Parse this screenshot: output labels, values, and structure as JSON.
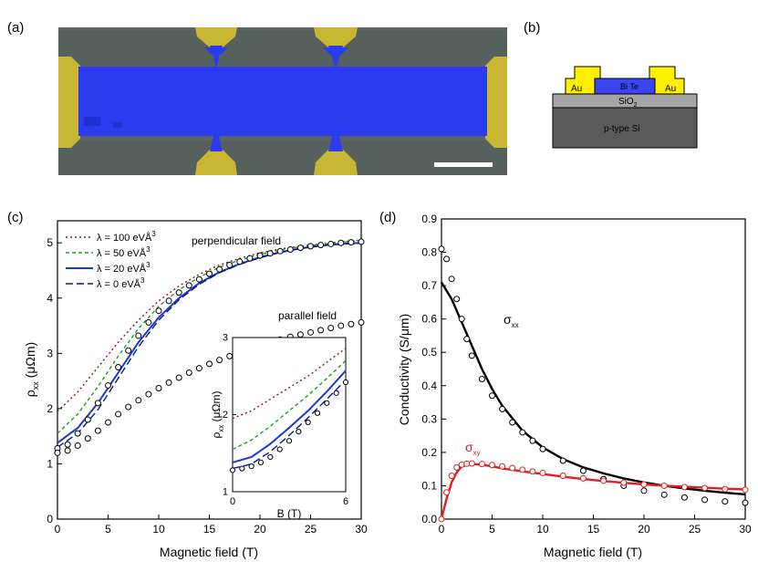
{
  "panels": {
    "a": "(a)",
    "b": "(b)",
    "c": "(c)",
    "d": "(d)"
  },
  "device": {
    "layers": {
      "au_left": "Au",
      "au_right": "Au",
      "film": "Bi Te",
      "oxide": "SiO",
      "oxide_sub": "2",
      "substrate": "p-type Si"
    },
    "colors": {
      "gold": "#ffef00",
      "film": "#3b44f0",
      "oxide": "#a6a6a6",
      "substrate": "#5a5a5a"
    }
  },
  "sem": {
    "colors": {
      "background": "#56605d",
      "channel": "#2b3cf0",
      "contacts": "#c9b733"
    }
  },
  "chart_data": [
    {
      "panel": "c",
      "type": "line",
      "xlabel": "Magnetic field (T)",
      "ylabel": "ρ",
      "ylabel_sub": "xx",
      "ylabel_unit": "(μΩm)",
      "xlim": [
        0,
        30
      ],
      "ylim": [
        0,
        5.4
      ],
      "xticks": [
        0,
        5,
        10,
        15,
        20,
        25,
        30
      ],
      "yticks": [
        0,
        1,
        2,
        3,
        4,
        5
      ],
      "legend_placement": "top-left",
      "annotations": [
        "perpendicular field",
        "parallel field"
      ],
      "series": [
        {
          "name": "λ = 100 eVÅ",
          "sup": "3",
          "style": "dot",
          "color": "#8b1a1a",
          "x": [
            0,
            2,
            4,
            6,
            8,
            10,
            12,
            14,
            16,
            18,
            20,
            22,
            24,
            26,
            28,
            30
          ],
          "y": [
            1.95,
            2.3,
            2.75,
            3.2,
            3.6,
            3.95,
            4.22,
            4.43,
            4.6,
            4.72,
            4.82,
            4.89,
            4.94,
            4.98,
            5.02,
            5.05
          ]
        },
        {
          "name": "λ = 50 eVÅ",
          "sup": "3",
          "style": "dash",
          "color": "#22a022",
          "x": [
            0,
            2,
            4,
            6,
            8,
            10,
            12,
            14,
            16,
            18,
            20,
            22,
            24,
            26,
            28,
            30
          ],
          "y": [
            1.55,
            1.9,
            2.4,
            2.95,
            3.45,
            3.85,
            4.15,
            4.38,
            4.56,
            4.69,
            4.79,
            4.87,
            4.93,
            4.97,
            5.01,
            5.04
          ]
        },
        {
          "name": "λ = 20 eVÅ",
          "sup": "3",
          "style": "solid",
          "color": "#1a3ad6",
          "x": [
            0,
            2,
            4,
            6,
            8,
            10,
            12,
            14,
            16,
            18,
            20,
            22,
            24,
            26,
            28,
            30
          ],
          "y": [
            1.38,
            1.65,
            2.1,
            2.65,
            3.2,
            3.65,
            4.0,
            4.27,
            4.47,
            4.62,
            4.74,
            4.83,
            4.9,
            4.95,
            4.98,
            5.0
          ]
        },
        {
          "name": "λ = 0 eVÅ",
          "sup": "3",
          "style": "longdash",
          "color": "#0a1a8a",
          "x": [
            0,
            2,
            4,
            6,
            8,
            10,
            12,
            14,
            16,
            18,
            20,
            22,
            24,
            26,
            28,
            30
          ],
          "y": [
            1.3,
            1.55,
            1.98,
            2.55,
            3.12,
            3.6,
            3.97,
            4.25,
            4.46,
            4.61,
            4.73,
            4.83,
            4.9,
            4.95,
            4.98,
            5.0
          ]
        },
        {
          "name": "",
          "style": "markers",
          "x": [
            0,
            1,
            2,
            3,
            4,
            5,
            6,
            7,
            8,
            9,
            10,
            11,
            12,
            13,
            14,
            15,
            16,
            17,
            18,
            19,
            20,
            21,
            22,
            23,
            24,
            25,
            26,
            27,
            28,
            29,
            30
          ],
          "y": [
            1.28,
            1.35,
            1.55,
            1.8,
            2.1,
            2.42,
            2.75,
            3.05,
            3.32,
            3.56,
            3.77,
            3.95,
            4.1,
            4.23,
            4.34,
            4.44,
            4.52,
            4.6,
            4.66,
            4.72,
            4.77,
            4.81,
            4.85,
            4.88,
            4.91,
            4.94,
            4.96,
            4.98,
            5.0,
            5.01,
            5.02
          ]
        },
        {
          "name": "",
          "style": "markers",
          "x": [
            0,
            1,
            2,
            3,
            4,
            5,
            6,
            7,
            8,
            9,
            10,
            11,
            12,
            13,
            14,
            15,
            16,
            17,
            18,
            19,
            20,
            21,
            22,
            23,
            24,
            25,
            26,
            27,
            28,
            29,
            30
          ],
          "y": [
            1.2,
            1.24,
            1.33,
            1.46,
            1.6,
            1.75,
            1.9,
            2.03,
            2.15,
            2.26,
            2.37,
            2.47,
            2.56,
            2.65,
            2.73,
            2.81,
            2.88,
            2.95,
            3.02,
            3.08,
            3.14,
            3.2,
            3.25,
            3.3,
            3.34,
            3.38,
            3.42,
            3.46,
            3.5,
            3.53,
            3.56
          ]
        }
      ],
      "inset": {
        "xlabel": "B (T)",
        "ylabel": "ρ",
        "ylabel_sub": "xx",
        "ylabel_unit": "(μΩm)",
        "xlim": [
          0,
          6
        ],
        "ylim": [
          1,
          3
        ],
        "xticks": [
          0,
          6
        ],
        "yticks": [
          1,
          2,
          3
        ],
        "series": [
          {
            "style": "dot",
            "color": "#8b1a1a",
            "x": [
              0,
              1,
              2,
              3,
              4,
              5,
              6
            ],
            "y": [
              1.95,
              2.05,
              2.2,
              2.35,
              2.5,
              2.68,
              2.86
            ]
          },
          {
            "style": "dash",
            "color": "#22a022",
            "x": [
              0,
              1,
              2,
              3,
              4,
              5,
              6
            ],
            "y": [
              1.55,
              1.67,
              1.85,
              2.05,
              2.25,
              2.47,
              2.7
            ]
          },
          {
            "style": "solid",
            "color": "#1a3ad6",
            "x": [
              0,
              1,
              2,
              3,
              4,
              5,
              6
            ],
            "y": [
              1.38,
              1.45,
              1.62,
              1.83,
              2.05,
              2.3,
              2.57
            ]
          },
          {
            "style": "longdash",
            "color": "#0a1a8a",
            "x": [
              0,
              1,
              2,
              3,
              4,
              5,
              6
            ],
            "y": [
              1.3,
              1.36,
              1.52,
              1.73,
              1.96,
              2.2,
              2.45
            ]
          },
          {
            "style": "markers",
            "x": [
              0,
              0.5,
              1,
              1.5,
              2,
              2.5,
              3,
              3.5,
              4,
              4.5,
              5,
              5.5,
              6
            ],
            "y": [
              1.28,
              1.3,
              1.33,
              1.38,
              1.45,
              1.55,
              1.66,
              1.78,
              1.9,
              2.02,
              2.15,
              2.28,
              2.42
            ]
          }
        ]
      }
    },
    {
      "panel": "d",
      "type": "line",
      "xlabel": "Magnetic field (T)",
      "ylabel": "Conductivity (S/μm)",
      "xlim": [
        0,
        30
      ],
      "ylim": [
        0,
        0.9
      ],
      "xticks": [
        0,
        5,
        10,
        15,
        20,
        25,
        30
      ],
      "yticks": [
        0.0,
        0.1,
        0.2,
        0.3,
        0.4,
        0.5,
        0.6,
        0.7,
        0.8,
        0.9
      ],
      "series": [
        {
          "name": "σ",
          "sub": "xx",
          "color": "#000000",
          "style": "solid",
          "x": [
            0,
            1,
            2,
            3,
            4,
            5,
            6,
            8,
            10,
            12,
            14,
            16,
            18,
            20,
            22,
            24,
            26,
            28,
            30
          ],
          "y": [
            0.71,
            0.66,
            0.59,
            0.52,
            0.45,
            0.39,
            0.34,
            0.265,
            0.215,
            0.18,
            0.155,
            0.137,
            0.122,
            0.11,
            0.1,
            0.092,
            0.085,
            0.079,
            0.074
          ]
        },
        {
          "name": "",
          "style": "markers",
          "color": "#000000",
          "x": [
            0,
            0.5,
            1,
            1.5,
            2,
            2.5,
            3,
            4,
            5,
            6,
            7,
            8,
            9,
            10,
            12,
            14,
            16,
            18,
            20,
            22,
            24,
            26,
            28,
            30
          ],
          "y": [
            0.81,
            0.78,
            0.72,
            0.66,
            0.6,
            0.54,
            0.49,
            0.42,
            0.37,
            0.33,
            0.29,
            0.26,
            0.235,
            0.21,
            0.175,
            0.145,
            0.12,
            0.1,
            0.085,
            0.073,
            0.065,
            0.058,
            0.053,
            0.049
          ]
        },
        {
          "name": "σ",
          "sub": "xy",
          "color": "#e02020",
          "style": "solid",
          "x": [
            0,
            0.5,
            1,
            1.5,
            2,
            3,
            4,
            5,
            6,
            8,
            10,
            12,
            14,
            16,
            18,
            20,
            22,
            24,
            26,
            28,
            30
          ],
          "y": [
            0.0,
            0.06,
            0.11,
            0.14,
            0.158,
            0.165,
            0.163,
            0.158,
            0.152,
            0.143,
            0.135,
            0.127,
            0.12,
            0.114,
            0.109,
            0.104,
            0.1,
            0.097,
            0.094,
            0.091,
            0.089
          ]
        },
        {
          "name": "",
          "style": "markers",
          "color": "#e02020",
          "x": [
            0,
            0.5,
            1,
            1.5,
            2,
            2.5,
            3,
            4,
            5,
            6,
            7,
            8,
            9,
            10,
            12,
            14,
            16,
            18,
            20,
            22,
            24,
            26,
            28,
            30
          ],
          "y": [
            0.0,
            0.08,
            0.13,
            0.155,
            0.163,
            0.166,
            0.167,
            0.165,
            0.162,
            0.158,
            0.153,
            0.148,
            0.143,
            0.138,
            0.13,
            0.122,
            0.115,
            0.109,
            0.104,
            0.1,
            0.096,
            0.093,
            0.09,
            0.088
          ]
        }
      ]
    }
  ]
}
